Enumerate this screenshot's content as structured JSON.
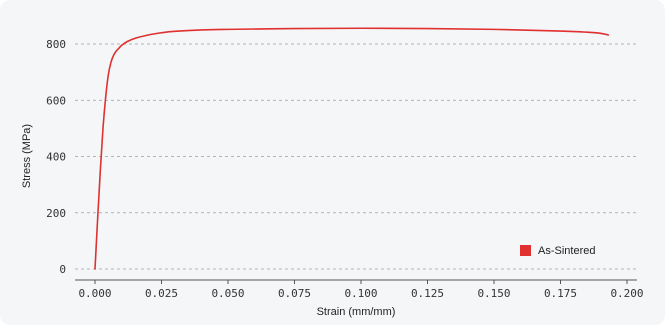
{
  "chart_data": {
    "type": "line",
    "title": "",
    "xlabel": "Strain (mm/mm)",
    "ylabel": "Stress (MPa)",
    "xlim": [
      0.0,
      0.2
    ],
    "ylim": [
      0,
      850
    ],
    "x_ticks": [
      "0.000",
      "0.025",
      "0.050",
      "0.075",
      "0.100",
      "0.125",
      "0.150",
      "0.175",
      "0.200"
    ],
    "y_ticks": [
      "0",
      "200",
      "400",
      "600",
      "800"
    ],
    "grid": "horizontal dashed",
    "legend_position": "bottom-right",
    "series": [
      {
        "name": "As-Sintered",
        "color": "#e03030",
        "x": [
          0.0,
          0.001,
          0.002,
          0.003,
          0.004,
          0.005,
          0.006,
          0.007,
          0.008,
          0.009,
          0.01,
          0.012,
          0.015,
          0.02,
          0.025,
          0.03,
          0.04,
          0.05,
          0.075,
          0.1,
          0.125,
          0.15,
          0.175,
          0.185,
          0.19,
          0.193
        ],
        "y": [
          0,
          180,
          350,
          500,
          610,
          690,
          735,
          760,
          775,
          785,
          795,
          808,
          820,
          832,
          840,
          845,
          850,
          852,
          855,
          856,
          855,
          852,
          846,
          842,
          838,
          832
        ]
      }
    ]
  }
}
